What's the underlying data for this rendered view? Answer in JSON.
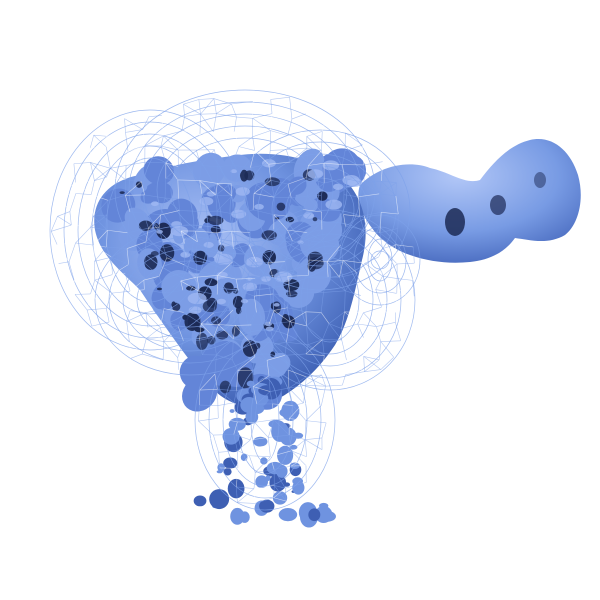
{
  "scene": {
    "subject": "cryo-em-density-map",
    "colors": {
      "background": "#ffffff",
      "density_surface": "#6f93e0",
      "density_highlight": "#9fb8f2",
      "density_shadow": "#1c2a55",
      "envelope_mesh": "#7ea2ea"
    }
  }
}
